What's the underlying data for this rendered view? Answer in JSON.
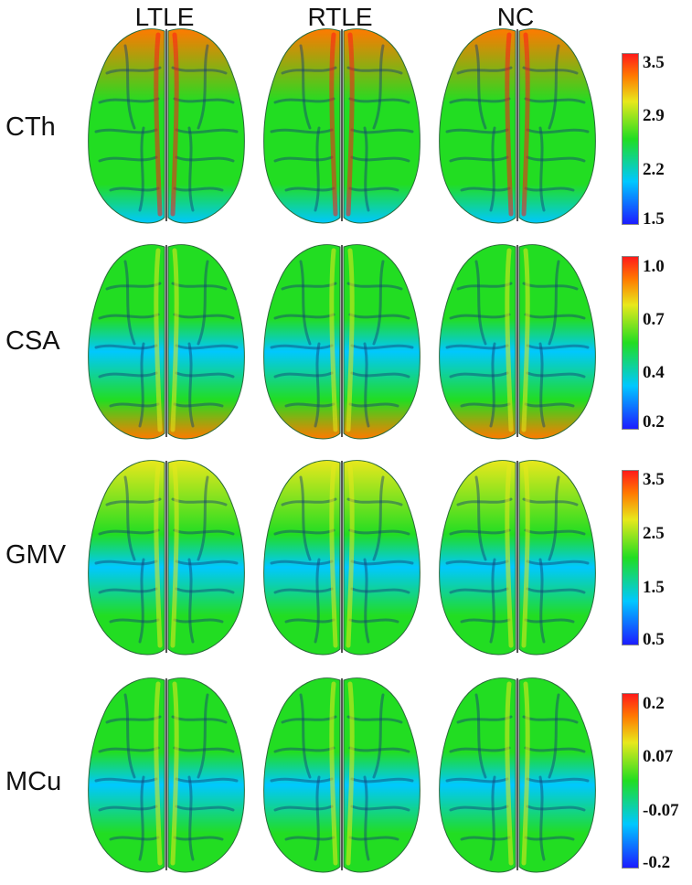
{
  "columns": [
    "LTLE",
    "RTLE",
    "NC"
  ],
  "rows": [
    {
      "label": "CTh",
      "colorbar_ticks": [
        "3.5",
        "2.9",
        "2.2",
        "1.5"
      ]
    },
    {
      "label": "CSA",
      "colorbar_ticks": [
        "1.0",
        "0.7",
        "0.4",
        "0.2"
      ]
    },
    {
      "label": "GMV",
      "colorbar_ticks": [
        "3.5",
        "2.5",
        "1.5",
        "0.5"
      ]
    },
    {
      "label": "MCu",
      "colorbar_ticks": [
        "0.2",
        "0.07",
        "-0.07",
        "-0.2"
      ]
    }
  ],
  "colormap": [
    "#1c1cff",
    "#00c8ff",
    "#22dd22",
    "#e8e81c",
    "#ff7a00",
    "#ff1a1a"
  ]
}
